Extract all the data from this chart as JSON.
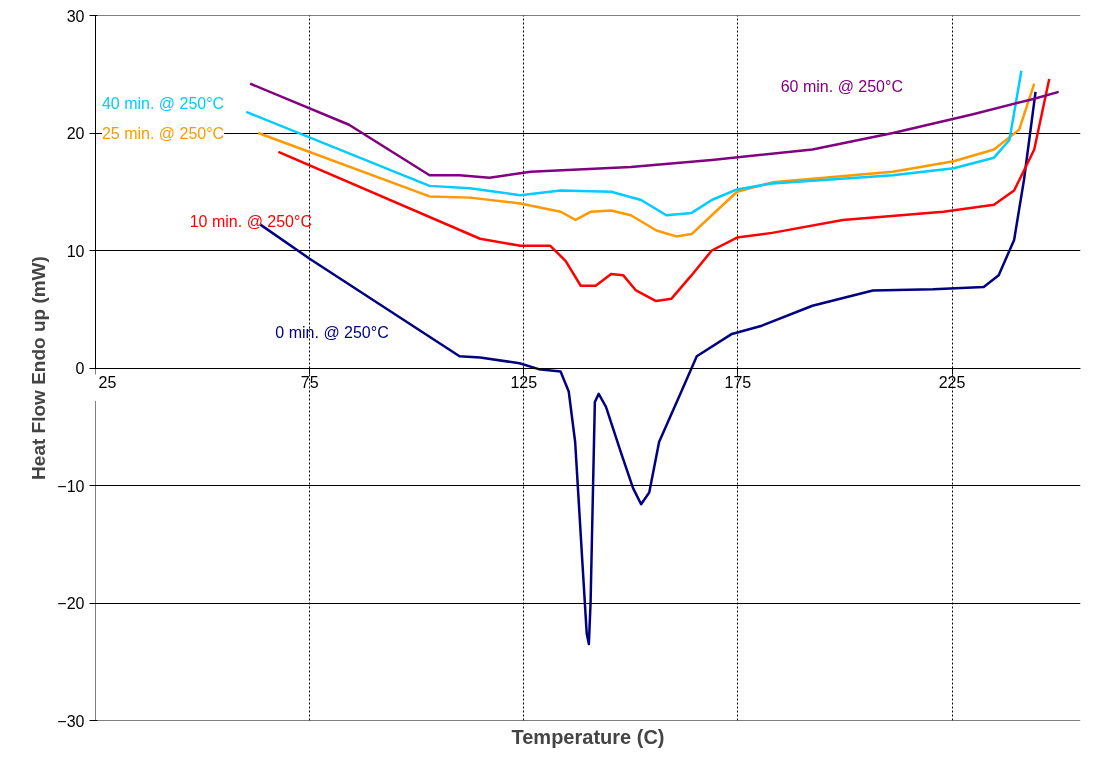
{
  "chart_data": {
    "type": "line",
    "xlabel": "Temperature (C)",
    "ylabel": "Heat Flow Endo up (mW)",
    "xlim": [
      25,
      255
    ],
    "xticks": [
      25,
      75,
      125,
      175,
      225
    ],
    "ylim": [
      -30,
      30
    ],
    "yticks": [
      -30,
      -20,
      -10,
      0,
      10,
      20,
      30
    ],
    "grid": true,
    "marker": "none",
    "line_style": "solid",
    "series": [
      {
        "name": "0 min. @ 250°C",
        "color": "#000080",
        "x": [
          63.5,
          75,
          110,
          114.8,
          124,
          128.5,
          133.6,
          135.5,
          137,
          138.7,
          139.7,
          140.2,
          140.6,
          141.6,
          142.5,
          144.2,
          147.7,
          150.5,
          152.4,
          154.3,
          156.6,
          161.8,
          165.4,
          173.6,
          180.6,
          192.4,
          206.5,
          220.6,
          232.4,
          235.9,
          239.5,
          241.8,
          244.5
        ],
        "values": [
          12.2,
          9.3,
          1.0,
          0.9,
          0.4,
          -0.1,
          -0.3,
          -2,
          -6.3,
          -16.6,
          -22.6,
          -23.5,
          -20,
          -2.9,
          -2.2,
          -3.3,
          -7.2,
          -10.2,
          -11.6,
          -10.6,
          -6.3,
          -2.0,
          1.0,
          2.9,
          3.6,
          5.3,
          6.6,
          6.7,
          6.9,
          7.9,
          10.9,
          16,
          23.5
        ]
      },
      {
        "name": "10 min. @ 250°C",
        "color": "#ff0000",
        "x": [
          67.7,
          114.8,
          124.2,
          131.2,
          134.8,
          138.3,
          141.8,
          145.4,
          148.2,
          151.2,
          155.9,
          159.5,
          164.2,
          168.9,
          174.8,
          183,
          199.5,
          223,
          234.8,
          239.5,
          244.2,
          247.7
        ],
        "values": [
          18.4,
          11.0,
          10.4,
          10.4,
          9.1,
          7.0,
          7.0,
          8.0,
          7.9,
          6.6,
          5.7,
          5.9,
          7.9,
          10.0,
          11.1,
          11.5,
          12.6,
          13.3,
          13.9,
          15.1,
          18.6,
          24.6
        ]
      },
      {
        "name": "25 min. @ 250°C",
        "color": "#ff9900",
        "x": [
          63,
          103,
          112.4,
          124.2,
          133.6,
          137.1,
          140.7,
          145.4,
          150,
          156,
          160.6,
          164.2,
          168.9,
          174.8,
          183,
          211.2,
          225.4,
          234.8,
          240.7,
          244.2
        ],
        "values": [
          20,
          14.6,
          14.5,
          14.0,
          13.3,
          12.6,
          13.3,
          13.4,
          13.0,
          11.7,
          11.2,
          11.4,
          13.0,
          15.0,
          15.8,
          16.7,
          17.6,
          18.6,
          20.3,
          24.2
        ]
      },
      {
        "name": "40 min. @ 250°C",
        "color": "#00ccff",
        "x": [
          60.2,
          103,
          112.4,
          124.2,
          133.6,
          145.4,
          152.4,
          158.3,
          164.2,
          168.9,
          174.8,
          183,
          211.2,
          225.4,
          234.8,
          238.4,
          241.2
        ],
        "values": [
          21.8,
          15.5,
          15.3,
          14.7,
          15.1,
          15.0,
          14.3,
          13.0,
          13.2,
          14.3,
          15.2,
          15.7,
          16.4,
          17.0,
          17.9,
          19.4,
          25.3
        ]
      },
      {
        "name": "60 min. @ 250°C",
        "color": "#800080",
        "x": [
          61.1,
          84.2,
          103,
          110,
          117,
          126.6,
          150,
          168.9,
          192.4,
          211.2,
          229.9,
          244,
          249.9
        ],
        "values": [
          24.2,
          20.7,
          16.4,
          16.4,
          16.2,
          16.7,
          17.1,
          17.7,
          18.6,
          20.0,
          21.6,
          22.9,
          23.5
        ]
      }
    ]
  }
}
